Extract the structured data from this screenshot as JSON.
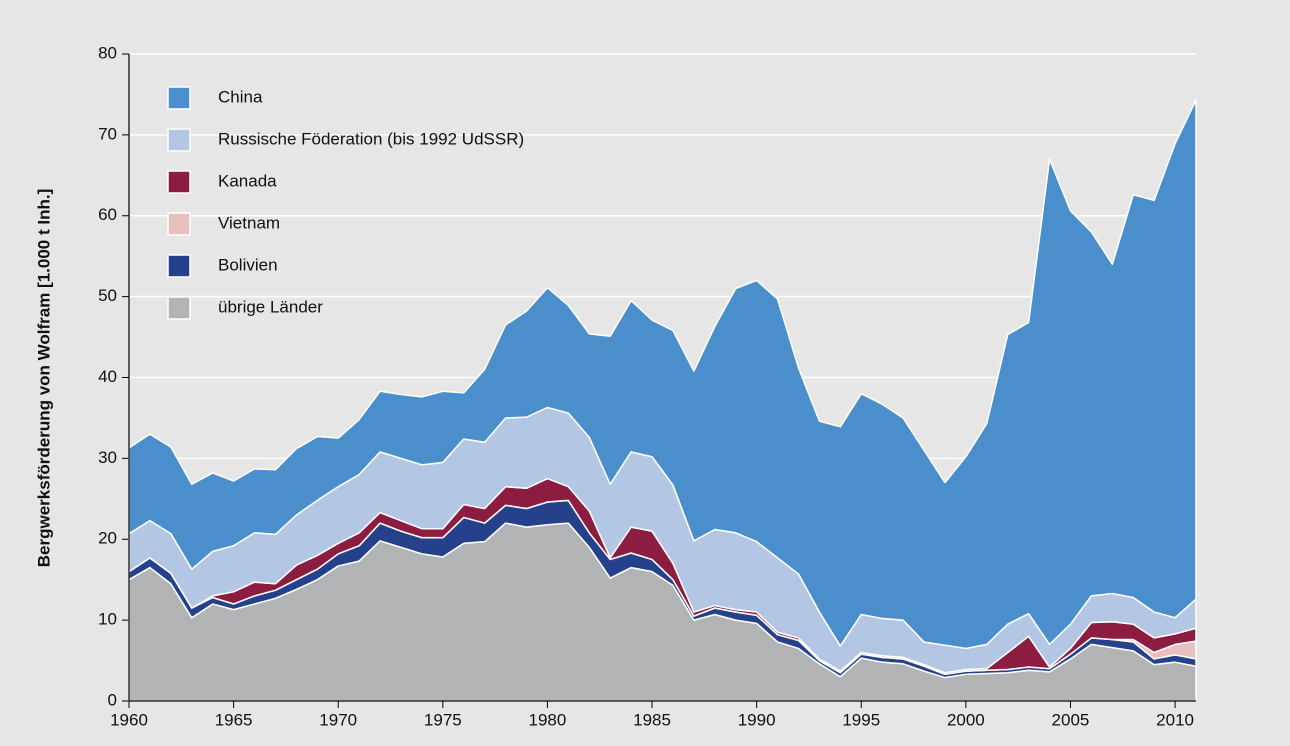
{
  "chart_data": {
    "type": "stacked_area",
    "ylabel": "Bergwerksförderung von Wolfram [1.000 t Inh.]",
    "x": [
      1960,
      1961,
      1962,
      1963,
      1964,
      1965,
      1966,
      1967,
      1968,
      1969,
      1970,
      1971,
      1972,
      1973,
      1974,
      1975,
      1976,
      1977,
      1978,
      1979,
      1980,
      1981,
      1982,
      1983,
      1984,
      1985,
      1986,
      1987,
      1988,
      1989,
      1990,
      1991,
      1992,
      1993,
      1994,
      1995,
      1996,
      1997,
      1998,
      1999,
      2000,
      2001,
      2002,
      2003,
      2004,
      2005,
      2006,
      2007,
      2008,
      2009,
      2010,
      2011
    ],
    "xlim": [
      1960,
      2011
    ],
    "xticks": [
      1960,
      1965,
      1970,
      1975,
      1980,
      1985,
      1990,
      1995,
      2000,
      2005,
      2010
    ],
    "ylim": [
      0,
      80
    ],
    "yticks": [
      0,
      10,
      20,
      30,
      40,
      50,
      60,
      70,
      80
    ],
    "grid": true,
    "legend": "upper left",
    "series": [
      {
        "name": "China",
        "color": "#4a8fcb",
        "values": [
          10.6,
          10.7,
          10.7,
          10.5,
          9.7,
          8,
          7.9,
          8,
          8.2,
          7.9,
          6,
          6.8,
          7.5,
          7.9,
          8.4,
          8.8,
          5.7,
          9,
          11.5,
          13.1,
          14.8,
          13.3,
          12.8,
          18.3,
          18.7,
          16.9,
          19.1,
          21,
          25.1,
          30.2,
          32.3,
          32,
          25.5,
          23.6,
          27.1,
          27.3,
          26.5,
          25,
          23.7,
          20.1,
          23.7,
          27.3,
          35.8,
          36,
          60,
          51.1,
          45,
          40.7,
          49.8,
          50.9,
          58.6,
          61.7
        ]
      },
      {
        "name": "Russische Föderation (bis 1992 UdSSR)",
        "color": "#b3c6e4",
        "values": [
          4.7,
          4.6,
          4.9,
          4.8,
          5.5,
          5.7,
          6.1,
          6.1,
          6.2,
          6.8,
          7,
          7.2,
          7.5,
          7.7,
          7.9,
          8.2,
          8.1,
          8.2,
          8.5,
          8.8,
          8.8,
          9.1,
          9.1,
          9.1,
          9.3,
          9.2,
          9.7,
          8.8,
          9.4,
          9.5,
          8.7,
          9.2,
          7.9,
          5.8,
          3.1,
          4.7,
          4.6,
          4.6,
          2.8,
          3.4,
          2.6,
          3,
          3.5,
          2.8,
          2.8,
          3,
          3.3,
          3.5,
          3.3,
          3.2,
          2,
          3.6
        ]
      },
      {
        "name": "Kanada",
        "color": "#8c1c40",
        "values": [
          0,
          0,
          0,
          0,
          0.2,
          1.5,
          1.7,
          0.8,
          1.8,
          1.7,
          1.3,
          1.6,
          1.3,
          1.3,
          1.1,
          1.1,
          1.6,
          1.8,
          2.3,
          2.5,
          2.9,
          1.7,
          2.7,
          0.2,
          3.2,
          3.5,
          2,
          0.5,
          0.3,
          0.3,
          0.4,
          0.3,
          0.3,
          0.2,
          0.2,
          0.2,
          0.2,
          0.2,
          0.2,
          0.2,
          0.2,
          0.2,
          2.1,
          3.8,
          0.2,
          0.7,
          1.9,
          2.2,
          1.9,
          1.8,
          1.3,
          1.6
        ]
      },
      {
        "name": "Vietnam",
        "color": "#e8c0c0",
        "values": [
          0,
          0,
          0,
          0,
          0,
          0,
          0,
          0,
          0,
          0,
          0,
          0,
          0,
          0,
          0,
          0,
          0,
          0,
          0,
          0,
          0,
          0,
          0,
          0,
          0,
          0,
          0,
          0,
          0,
          0,
          0,
          0,
          0,
          0,
          0,
          0,
          0,
          0,
          0,
          0,
          0,
          0,
          0,
          0,
          0,
          0,
          0,
          0,
          0.3,
          0.8,
          1.3,
          2.2
        ]
      },
      {
        "name": "Bolivien",
        "color": "#25418b",
        "values": [
          1,
          1.2,
          1.3,
          1.2,
          0.8,
          0.7,
          1,
          1,
          1.2,
          1.3,
          1.5,
          1.9,
          2.2,
          2,
          2,
          2.4,
          3.2,
          2.3,
          2.2,
          2.3,
          2.8,
          2.8,
          1.8,
          2.3,
          1.8,
          1.5,
          0.7,
          0.5,
          0.8,
          1,
          1,
          0.9,
          1,
          0.4,
          0.5,
          0.5,
          0.6,
          0.6,
          0.6,
          0.4,
          0.4,
          0.4,
          0.4,
          0.4,
          0.4,
          0.6,
          0.8,
          1,
          1.1,
          0.7,
          0.9,
          0.9
        ]
      },
      {
        "name": "übrige Länder",
        "color": "#b1b3b5",
        "values": [
          15,
          16.5,
          14.5,
          10.3,
          12,
          11.3,
          12,
          12.7,
          13.8,
          15,
          16.7,
          17.3,
          19.8,
          19,
          18.2,
          17.8,
          19.5,
          19.7,
          22,
          21.5,
          21.8,
          22,
          19,
          15.2,
          16.5,
          16,
          14.3,
          10,
          10.7,
          10,
          9.6,
          7.3,
          6.5,
          4.6,
          3,
          5.3,
          4.8,
          4.6,
          3.7,
          2.9,
          3.3,
          3.4,
          3.5,
          3.8,
          3.6,
          5.2,
          7,
          6.6,
          6.2,
          4.5,
          4.8,
          4.3
        ]
      }
    ]
  }
}
